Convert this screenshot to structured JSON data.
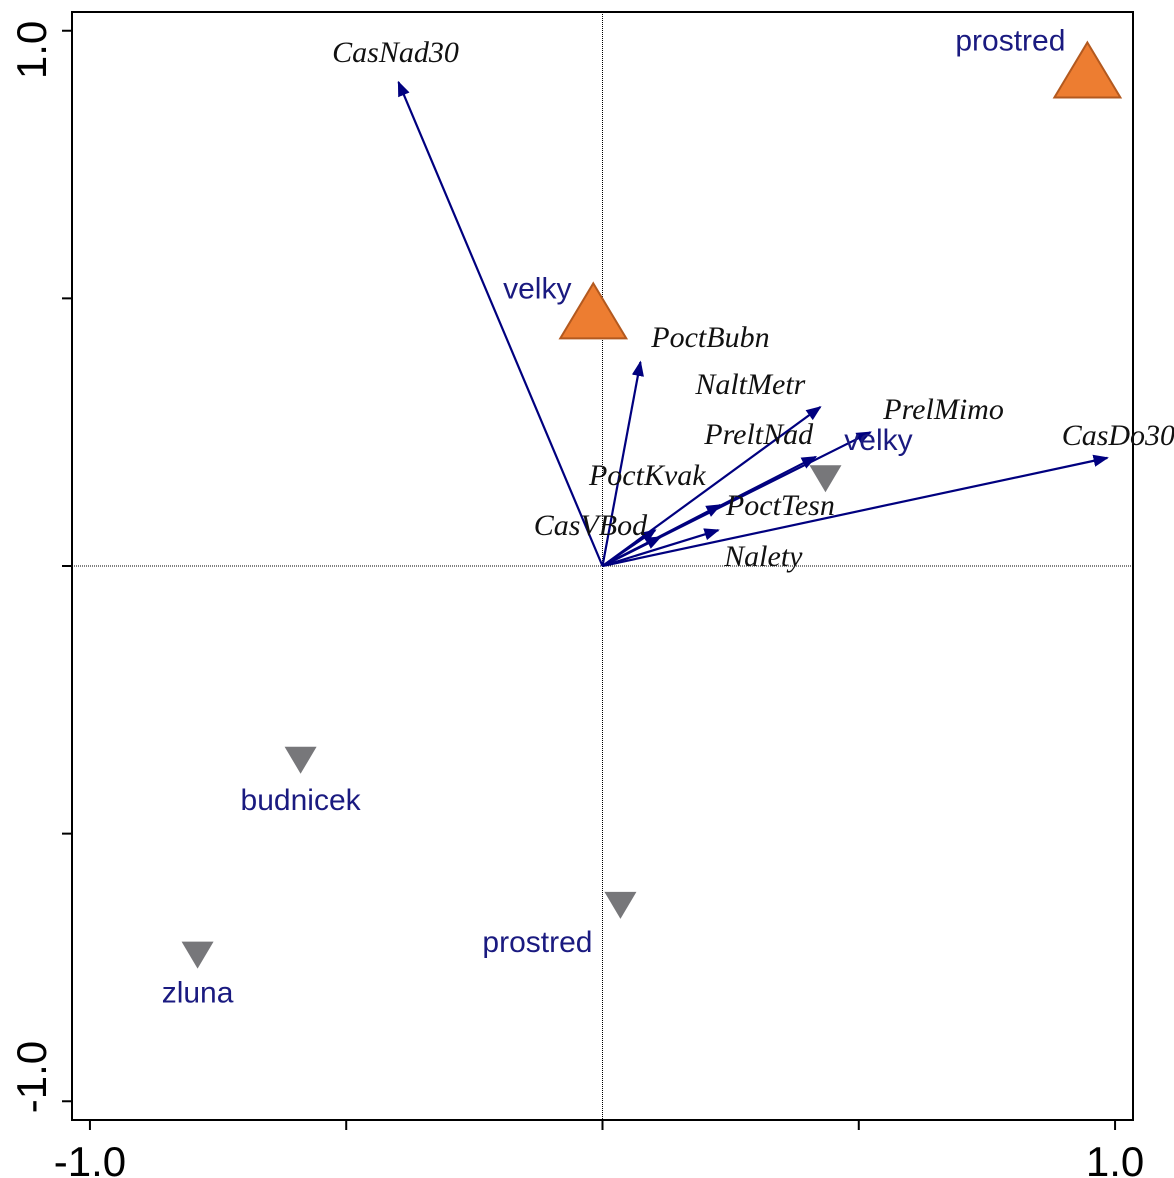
{
  "chart_data": {
    "type": "biplot",
    "xlim": [
      -1.035,
      1.035
    ],
    "ylim": [
      -1.035,
      1.035
    ],
    "xticks": [
      {
        "value": -1,
        "label": "-1.0"
      },
      {
        "value": 1,
        "label": "1.0"
      }
    ],
    "xminorticks": [
      -0.5,
      0,
      0.5
    ],
    "yticks": [
      {
        "value": -1,
        "label": "-1.0"
      },
      {
        "value": 1,
        "label": "1.0"
      }
    ],
    "yminorticks": [
      -0.5,
      0,
      0.5
    ],
    "arrow_color": "#00007f",
    "arrows": [
      {
        "name": "CasNad30",
        "x": -0.398,
        "y": 0.904
      },
      {
        "name": "PoctBubn",
        "x": 0.074,
        "y": 0.381
      },
      {
        "name": "NaltMetr",
        "x": 0.425,
        "y": 0.297
      },
      {
        "name": "PrelMimo",
        "x": 0.523,
        "y": 0.25
      },
      {
        "name": "PreltNad",
        "x": 0.416,
        "y": 0.204
      },
      {
        "name": "CasDo30",
        "x": 0.985,
        "y": 0.202
      },
      {
        "name": "PoctKvak",
        "x": 0.103,
        "y": 0.067
      },
      {
        "name": "PoctTesn",
        "x": 0.23,
        "y": 0.114
      },
      {
        "name": "CasVBod",
        "x": 0.113,
        "y": 0.054
      },
      {
        "name": "Nalety",
        "x": 0.226,
        "y": 0.067
      }
    ],
    "point_groups": [
      {
        "marker": "triangle-up",
        "color": "#ed7d31",
        "points": [
          {
            "name": "velky",
            "x": -0.018,
            "y": 0.472
          },
          {
            "name": "prostred",
            "x": 0.946,
            "y": 0.922
          }
        ]
      },
      {
        "marker": "triangle-down",
        "color": "#77777a",
        "points": [
          {
            "name": "velky",
            "x": 0.435,
            "y": 0.164
          },
          {
            "name": "budnicek",
            "x": -0.589,
            "y": -0.362
          },
          {
            "name": "prostred",
            "x": 0.035,
            "y": -0.633
          },
          {
            "name": "zluna",
            "x": -0.79,
            "y": -0.726
          }
        ]
      }
    ]
  }
}
